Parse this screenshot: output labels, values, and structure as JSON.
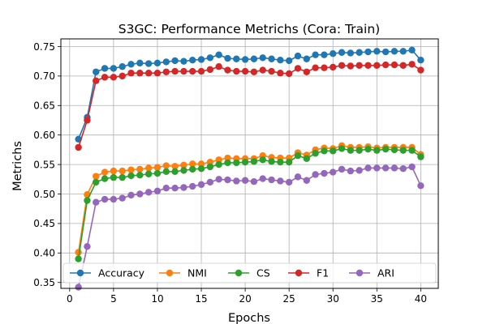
{
  "chart_data": {
    "type": "line",
    "title": "S3GC: Performance Metrichs (Cora: Train)",
    "xlabel": "Epochs",
    "ylabel": "Metrichs",
    "xlim": [
      -1.0,
      42.0
    ],
    "ylim": [
      0.34,
      0.763
    ],
    "xticks": [
      0,
      5,
      10,
      15,
      20,
      25,
      30,
      35,
      40
    ],
    "yticks": [
      0.35,
      0.4,
      0.45,
      0.5,
      0.55,
      0.6,
      0.65,
      0.7,
      0.75
    ],
    "grid": true,
    "legend_position": "lower center",
    "x": [
      1,
      2,
      3,
      4,
      5,
      6,
      7,
      8,
      9,
      10,
      11,
      12,
      13,
      14,
      15,
      16,
      17,
      18,
      19,
      20,
      21,
      22,
      23,
      24,
      25,
      26,
      27,
      28,
      29,
      30,
      31,
      32,
      33,
      34,
      35,
      36,
      37,
      38,
      39,
      40
    ],
    "series": [
      {
        "name": "Accuracy",
        "color": "#1f77b4",
        "values": [
          0.593,
          0.63,
          0.707,
          0.713,
          0.713,
          0.716,
          0.72,
          0.722,
          0.721,
          0.722,
          0.724,
          0.726,
          0.725,
          0.727,
          0.728,
          0.731,
          0.736,
          0.73,
          0.729,
          0.728,
          0.729,
          0.731,
          0.729,
          0.727,
          0.726,
          0.734,
          0.729,
          0.736,
          0.736,
          0.738,
          0.74,
          0.739,
          0.74,
          0.741,
          0.742,
          0.741,
          0.742,
          0.742,
          0.744,
          0.727
        ]
      },
      {
        "name": "NMI",
        "color": "#ff7f0e",
        "values": [
          0.401,
          0.499,
          0.53,
          0.537,
          0.539,
          0.539,
          0.541,
          0.542,
          0.544,
          0.545,
          0.548,
          0.547,
          0.549,
          0.551,
          0.551,
          0.554,
          0.558,
          0.561,
          0.56,
          0.56,
          0.56,
          0.565,
          0.562,
          0.561,
          0.561,
          0.57,
          0.566,
          0.575,
          0.578,
          0.577,
          0.582,
          0.579,
          0.579,
          0.58,
          0.578,
          0.579,
          0.579,
          0.579,
          0.579,
          0.567
        ]
      },
      {
        "name": "CS",
        "color": "#2ca02c",
        "values": [
          0.39,
          0.489,
          0.52,
          0.526,
          0.528,
          0.528,
          0.531,
          0.532,
          0.534,
          0.535,
          0.538,
          0.538,
          0.54,
          0.542,
          0.543,
          0.546,
          0.55,
          0.553,
          0.553,
          0.554,
          0.555,
          0.558,
          0.555,
          0.554,
          0.554,
          0.565,
          0.56,
          0.569,
          0.573,
          0.573,
          0.577,
          0.574,
          0.574,
          0.576,
          0.574,
          0.576,
          0.575,
          0.574,
          0.574,
          0.563
        ]
      },
      {
        "name": "F1",
        "color": "#d62728",
        "values": [
          0.579,
          0.625,
          0.692,
          0.698,
          0.698,
          0.7,
          0.705,
          0.705,
          0.705,
          0.705,
          0.707,
          0.708,
          0.708,
          0.708,
          0.708,
          0.711,
          0.716,
          0.71,
          0.708,
          0.708,
          0.707,
          0.71,
          0.708,
          0.705,
          0.704,
          0.713,
          0.707,
          0.714,
          0.714,
          0.715,
          0.718,
          0.717,
          0.718,
          0.718,
          0.718,
          0.719,
          0.719,
          0.718,
          0.72,
          0.71
        ]
      },
      {
        "name": "ARI",
        "color": "#9467bd",
        "values": [
          0.342,
          0.411,
          0.486,
          0.491,
          0.491,
          0.493,
          0.498,
          0.5,
          0.503,
          0.505,
          0.51,
          0.51,
          0.511,
          0.513,
          0.516,
          0.52,
          0.525,
          0.524,
          0.522,
          0.523,
          0.521,
          0.526,
          0.524,
          0.522,
          0.52,
          0.529,
          0.523,
          0.533,
          0.535,
          0.537,
          0.542,
          0.539,
          0.54,
          0.544,
          0.544,
          0.544,
          0.544,
          0.543,
          0.546,
          0.514
        ]
      }
    ]
  }
}
